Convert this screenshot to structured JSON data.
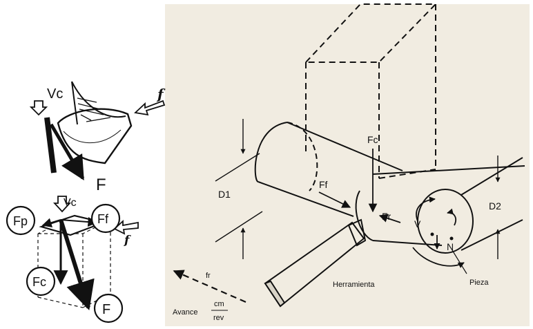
{
  "left_top_diagram": {
    "cutting_speed_label": "Vc",
    "feed_label": "f",
    "resultant_label": "F"
  },
  "left_bottom_diagram": {
    "cutting_speed_label": "Vc",
    "passive_force_label": "Fp",
    "feed_force_label": "Ff",
    "cutting_force_label": "Fc",
    "resultant_label": "F",
    "feed_label": "f"
  },
  "right_diagram": {
    "cutting_force_label": "Fc",
    "feed_force_label": "Ff",
    "radial_force_label": "Fr",
    "initial_diameter_label": "D1",
    "final_diameter_label": "D2",
    "speed_label": "V",
    "rotation_label": "N",
    "tool_label": "Herramienta",
    "workpiece_label": "Pieza",
    "feed_direction_label": "fr",
    "feed_caption": "Avance",
    "feed_units_numerator": "cm",
    "feed_units_denominator": "rev"
  },
  "colors": {
    "page_background": "#ffffff",
    "photo_background": "#f1ece1",
    "ink": "#111111"
  }
}
